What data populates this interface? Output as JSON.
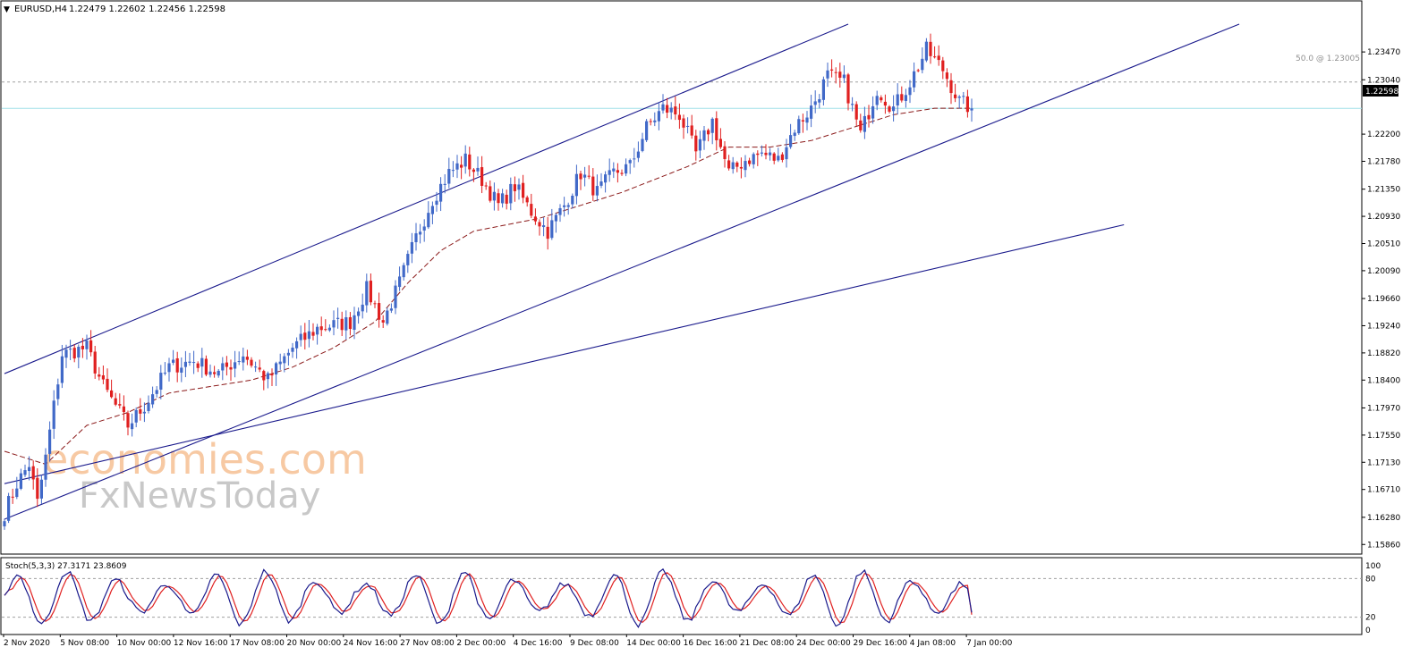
{
  "header": {
    "symbol": "EURUSD,H4",
    "ohlc": "1.22479 1.22602 1.22456 1.22598"
  },
  "fib_label": "50.0 @ 1.23005",
  "current_price_label": "1.22598",
  "stoch_label": "Stoch(5,3,3) 27.3171 23.8609",
  "watermark": {
    "top": "economies.com",
    "bottom": "FxNewsToday"
  },
  "colors": {
    "bull": "#4169c8",
    "bear": "#e02020",
    "trendline": "#1a1a8c",
    "ma": "#8b1a1a",
    "stoch_main": "#1a1a8c",
    "stoch_signal": "#e02020",
    "bid_line": "#a0e0e8"
  },
  "chart_data": {
    "type": "candlestick",
    "price_axis_ticks": [
      "1.23470",
      "1.23040",
      "1.22200",
      "1.21780",
      "1.21350",
      "1.20930",
      "1.20510",
      "1.20090",
      "1.19660",
      "1.19240",
      "1.18820",
      "1.18400",
      "1.17970",
      "1.17550",
      "1.17130",
      "1.16710",
      "1.16280",
      "1.15860"
    ],
    "ylim": [
      1.158,
      1.2385
    ],
    "time_axis_labels": [
      "2 Nov 2020",
      "5 Nov 08:00",
      "10 Nov 00:00",
      "12 Nov 16:00",
      "17 Nov 08:00",
      "20 Nov 00:00",
      "24 Nov 16:00",
      "27 Nov 08:00",
      "2 Dec 00:00",
      "4 Dec 16:00",
      "9 Dec 08:00",
      "14 Dec 00:00",
      "16 Dec 16:00",
      "21 Dec 08:00",
      "24 Dec 00:00",
      "29 Dec 16:00",
      "4 Jan 08:00",
      "7 Jan 00:00"
    ],
    "fib_level": 1.23005,
    "current_price": 1.22598,
    "anchors": [
      [
        0,
        1.1635
      ],
      [
        3,
        1.168
      ],
      [
        6,
        1.171
      ],
      [
        8,
        1.165
      ],
      [
        10,
        1.172
      ],
      [
        14,
        1.188
      ],
      [
        20,
        1.189
      ],
      [
        24,
        1.183
      ],
      [
        30,
        1.177
      ],
      [
        34,
        1.18
      ],
      [
        40,
        1.186
      ],
      [
        46,
        1.187
      ],
      [
        52,
        1.185
      ],
      [
        58,
        1.188
      ],
      [
        64,
        1.184
      ],
      [
        70,
        1.189
      ],
      [
        76,
        1.192
      ],
      [
        84,
        1.193
      ],
      [
        88,
        1.198
      ],
      [
        92,
        1.193
      ],
      [
        96,
        1.199
      ],
      [
        100,
        1.206
      ],
      [
        104,
        1.212
      ],
      [
        108,
        1.216
      ],
      [
        112,
        1.218
      ],
      [
        116,
        1.215
      ],
      [
        120,
        1.211
      ],
      [
        124,
        1.214
      ],
      [
        128,
        1.21
      ],
      [
        132,
        1.207
      ],
      [
        136,
        1.211
      ],
      [
        140,
        1.216
      ],
      [
        144,
        1.213
      ],
      [
        148,
        1.216
      ],
      [
        152,
        1.217
      ],
      [
        156,
        1.223
      ],
      [
        160,
        1.226
      ],
      [
        164,
        1.225
      ],
      [
        168,
        1.219
      ],
      [
        172,
        1.224
      ],
      [
        176,
        1.216
      ],
      [
        180,
        1.218
      ],
      [
        184,
        1.219
      ],
      [
        188,
        1.218
      ],
      [
        192,
        1.223
      ],
      [
        196,
        1.226
      ],
      [
        200,
        1.231
      ],
      [
        204,
        1.23
      ],
      [
        208,
        1.222
      ],
      [
        212,
        1.229
      ],
      [
        216,
        1.226
      ],
      [
        220,
        1.23
      ],
      [
        224,
        1.235
      ],
      [
        228,
        1.232
      ],
      [
        232,
        1.227
      ],
      [
        235,
        1.226
      ]
    ],
    "ma_anchors": [
      [
        0,
        1.173
      ],
      [
        10,
        1.171
      ],
      [
        20,
        1.177
      ],
      [
        30,
        1.179
      ],
      [
        40,
        1.182
      ],
      [
        50,
        1.183
      ],
      [
        60,
        1.184
      ],
      [
        70,
        1.186
      ],
      [
        80,
        1.189
      ],
      [
        90,
        1.193
      ],
      [
        98,
        1.199
      ],
      [
        106,
        1.204
      ],
      [
        114,
        1.207
      ],
      [
        122,
        1.208
      ],
      [
        130,
        1.209
      ],
      [
        140,
        1.211
      ],
      [
        150,
        1.213
      ],
      [
        158,
        1.215
      ],
      [
        166,
        1.217
      ],
      [
        176,
        1.22
      ],
      [
        186,
        1.22
      ],
      [
        196,
        1.221
      ],
      [
        206,
        1.223
      ],
      [
        216,
        1.225
      ],
      [
        226,
        1.226
      ],
      [
        235,
        1.226
      ]
    ],
    "trendlines": [
      [
        [
          0,
          1.185
        ],
        [
          205,
          1.239
        ]
      ],
      [
        [
          0,
          1.1625
        ],
        [
          300,
          1.239
        ]
      ],
      [
        [
          0,
          1.168
        ],
        [
          272,
          1.208
        ]
      ]
    ],
    "stoch": {
      "ylim": [
        0,
        100
      ],
      "ticks": [
        "100",
        "80",
        "20",
        "0"
      ],
      "levels": [
        20,
        80
      ],
      "main_last": 27.3171,
      "signal_last": 23.8609
    }
  }
}
